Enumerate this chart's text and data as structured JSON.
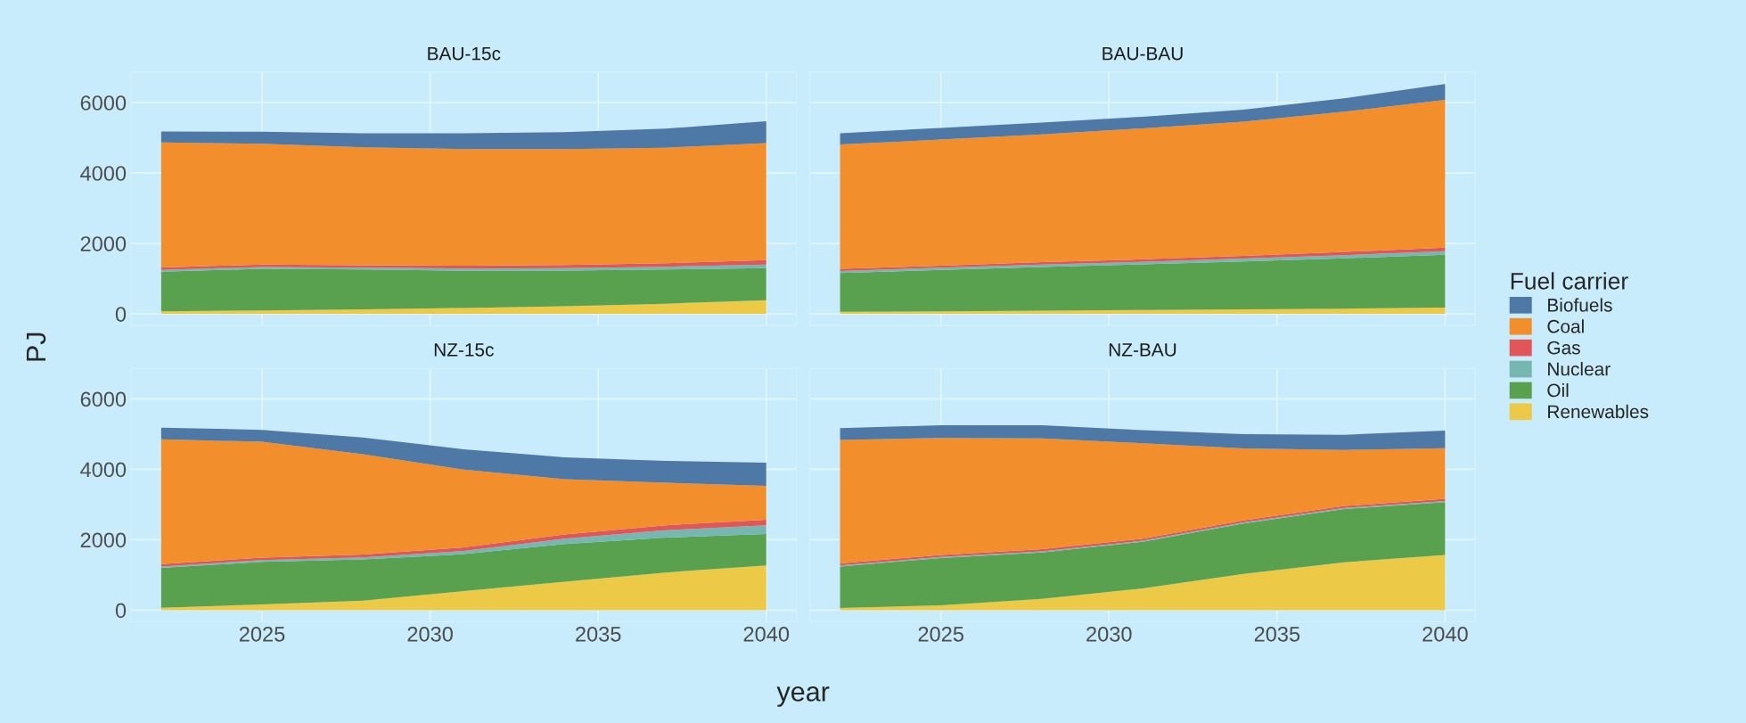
{
  "chart_data": [
    {
      "type": "area",
      "stacked": true,
      "title": "BAU-15c",
      "ylabel": "PJ",
      "legend_title": "Fuel carrier",
      "legend": "right",
      "grid": true,
      "tick_labels": "y",
      "x": [
        2022,
        2025,
        2028,
        2031,
        2034,
        2037,
        2040
      ],
      "xlim": [
        2021.1,
        2040.9
      ],
      "xticks": [
        2025,
        2030,
        2035,
        2040
      ],
      "ylim": [
        -330,
        6860
      ],
      "yticks": [
        0,
        2000,
        4000,
        6000
      ],
      "series": [
        {
          "name": "Renewables",
          "color": "#edc948",
          "values": [
            70,
            100,
            130,
            170,
            220,
            290,
            390
          ]
        },
        {
          "name": "Oil",
          "color": "#59a14f",
          "values": [
            1130,
            1180,
            1130,
            1060,
            1010,
            970,
            910
          ]
        },
        {
          "name": "Nuclear",
          "color": "#76b7b2",
          "values": [
            50,
            50,
            50,
            60,
            70,
            80,
            100
          ]
        },
        {
          "name": "Gas",
          "color": "#e15759",
          "values": [
            70,
            70,
            70,
            80,
            90,
            100,
            130
          ]
        },
        {
          "name": "Coal",
          "color": "#f28e2b",
          "values": [
            3550,
            3430,
            3350,
            3310,
            3290,
            3280,
            3320
          ]
        },
        {
          "name": "Biofuels",
          "color": "#4e79a7",
          "values": [
            310,
            340,
            400,
            450,
            480,
            540,
            620
          ]
        }
      ]
    },
    {
      "type": "area",
      "stacked": true,
      "title": "BAU-BAU",
      "grid": true,
      "tick_labels": false,
      "x": [
        2022,
        2025,
        2028,
        2031,
        2034,
        2037,
        2040
      ],
      "xlim": [
        2021.1,
        2040.9
      ],
      "xticks": [
        2025,
        2030,
        2035,
        2040
      ],
      "ylim": [
        -330,
        6860
      ],
      "yticks": [
        0,
        2000,
        4000,
        6000
      ],
      "series": [
        {
          "color": "#edc948",
          "values": [
            60,
            70,
            90,
            110,
            130,
            150,
            180
          ]
        },
        {
          "color": "#59a14f",
          "values": [
            1100,
            1180,
            1240,
            1300,
            1360,
            1430,
            1500
          ]
        },
        {
          "color": "#76b7b2",
          "values": [
            60,
            60,
            70,
            70,
            80,
            90,
            100
          ]
        },
        {
          "color": "#e15759",
          "values": [
            60,
            60,
            70,
            70,
            80,
            90,
            100
          ]
        },
        {
          "color": "#f28e2b",
          "values": [
            3530,
            3580,
            3630,
            3720,
            3810,
            3980,
            4200
          ]
        },
        {
          "color": "#4e79a7",
          "values": [
            320,
            330,
            330,
            330,
            340,
            380,
            450
          ]
        }
      ]
    },
    {
      "type": "area",
      "stacked": true,
      "title": "NZ-15c",
      "xlabel": "year",
      "grid": true,
      "x": [
        2022,
        2025,
        2028,
        2031,
        2034,
        2037,
        2040
      ],
      "xlim": [
        2021.1,
        2040.9
      ],
      "xticks": [
        2025,
        2030,
        2035,
        2040
      ],
      "ylim": [
        -330,
        6860
      ],
      "yticks": [
        0,
        2000,
        4000,
        6000
      ],
      "series": [
        {
          "color": "#edc948",
          "values": [
            70,
            160,
            270,
            540,
            810,
            1070,
            1270
          ]
        },
        {
          "color": "#59a14f",
          "values": [
            1130,
            1210,
            1170,
            1050,
            1070,
            990,
            890
          ]
        },
        {
          "color": "#76b7b2",
          "values": [
            40,
            50,
            60,
            90,
            150,
            210,
            250
          ]
        },
        {
          "color": "#e15759",
          "values": [
            70,
            70,
            80,
            100,
            120,
            140,
            160
          ]
        },
        {
          "color": "#f28e2b",
          "values": [
            3540,
            3290,
            2850,
            2210,
            1570,
            1210,
            960
          ]
        },
        {
          "color": "#4e79a7",
          "values": [
            330,
            340,
            470,
            580,
            620,
            620,
            660
          ]
        }
      ]
    },
    {
      "type": "area",
      "stacked": true,
      "title": "NZ-BAU",
      "grid": true,
      "tick_labels": "x",
      "x": [
        2022,
        2025,
        2028,
        2031,
        2034,
        2037,
        2040
      ],
      "xlim": [
        2021.1,
        2040.9
      ],
      "xticks": [
        2025,
        2030,
        2035,
        2040
      ],
      "ylim": [
        -330,
        6860
      ],
      "yticks": [
        0,
        2000,
        4000,
        6000
      ],
      "series": [
        {
          "color": "#edc948",
          "values": [
            60,
            140,
            320,
            620,
            1030,
            1360,
            1570
          ]
        },
        {
          "color": "#59a14f",
          "values": [
            1180,
            1340,
            1320,
            1320,
            1430,
            1510,
            1500
          ]
        },
        {
          "color": "#76b7b2",
          "values": [
            30,
            30,
            30,
            30,
            30,
            30,
            30
          ]
        },
        {
          "color": "#e15759",
          "values": [
            60,
            60,
            60,
            60,
            60,
            60,
            60
          ]
        },
        {
          "color": "#f28e2b",
          "values": [
            3500,
            3320,
            3150,
            2710,
            2040,
            1590,
            1440
          ]
        },
        {
          "color": "#4e79a7",
          "values": [
            340,
            360,
            370,
            370,
            410,
            430,
            500
          ]
        }
      ]
    }
  ]
}
